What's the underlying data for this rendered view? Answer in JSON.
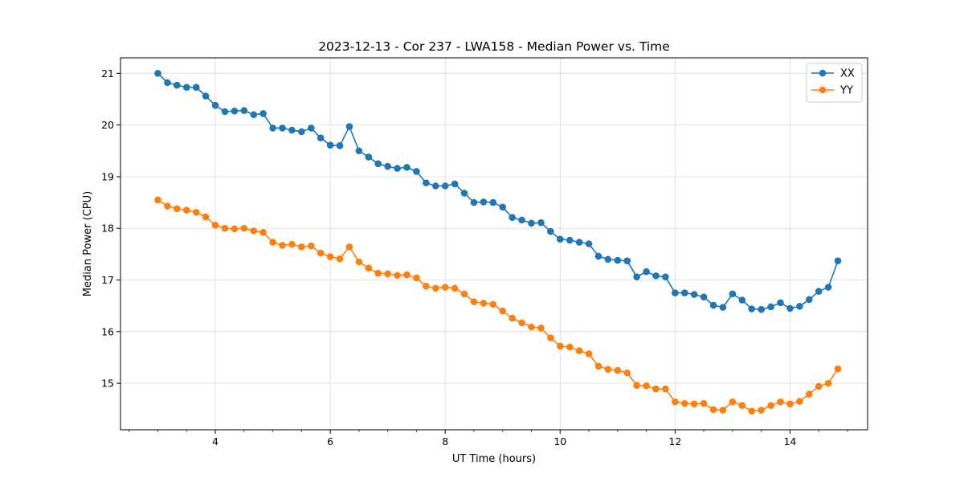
{
  "chart_data": {
    "type": "line",
    "title": "2023-12-13 - Cor 237 - LWA158 - Median Power vs. Time",
    "xlabel": "UT Time (hours)",
    "ylabel": "Median Power (CPU)",
    "xlim": [
      2.35,
      15.35
    ],
    "ylim": [
      14.1,
      21.3
    ],
    "xticks": [
      4,
      6,
      8,
      10,
      12,
      14
    ],
    "xtick_labels": [
      "4",
      "6",
      "8",
      "10",
      "12",
      "14"
    ],
    "yticks": [
      15,
      16,
      17,
      18,
      19,
      20,
      21
    ],
    "ytick_labels": [
      "15",
      "16",
      "17",
      "18",
      "19",
      "20",
      "21"
    ],
    "grid": true,
    "legend_position": "top-right",
    "x": [
      3.0,
      3.167,
      3.333,
      3.5,
      3.667,
      3.833,
      4.0,
      4.167,
      4.333,
      4.5,
      4.667,
      4.833,
      5.0,
      5.167,
      5.333,
      5.5,
      5.667,
      5.833,
      6.0,
      6.167,
      6.333,
      6.5,
      6.667,
      6.833,
      7.0,
      7.167,
      7.333,
      7.5,
      7.667,
      7.833,
      8.0,
      8.167,
      8.333,
      8.5,
      8.667,
      8.833,
      9.0,
      9.167,
      9.333,
      9.5,
      9.667,
      9.833,
      10.0,
      10.167,
      10.333,
      10.5,
      10.667,
      10.833,
      11.0,
      11.167,
      11.333,
      11.5,
      11.667,
      11.833,
      12.0,
      12.167,
      12.333,
      12.5,
      12.667,
      12.833,
      13.0,
      13.167,
      13.333,
      13.5,
      13.667,
      13.833,
      14.0,
      14.167,
      14.333,
      14.5,
      14.667,
      14.833
    ],
    "series": [
      {
        "name": "XX",
        "color": "#1f77b4",
        "values": [
          21.0,
          20.82,
          20.77,
          20.73,
          20.73,
          20.56,
          20.38,
          20.26,
          20.27,
          20.28,
          20.2,
          20.22,
          19.94,
          19.94,
          19.9,
          19.87,
          19.94,
          19.75,
          19.61,
          19.6,
          19.97,
          19.5,
          19.38,
          19.25,
          19.2,
          19.16,
          19.18,
          19.1,
          18.88,
          18.82,
          18.82,
          18.86,
          18.68,
          18.5,
          18.51,
          18.5,
          18.41,
          18.21,
          18.16,
          18.1,
          18.11,
          17.94,
          17.79,
          17.77,
          17.73,
          17.7,
          17.46,
          17.4,
          17.38,
          17.37,
          17.06,
          17.16,
          17.08,
          17.06,
          16.75,
          16.75,
          16.72,
          16.67,
          16.51,
          16.47,
          16.73,
          16.61,
          16.44,
          16.43,
          16.48,
          16.56,
          16.45,
          16.49,
          16.62,
          16.78,
          16.86,
          17.37
        ]
      },
      {
        "name": "YY",
        "color": "#ff7f0e",
        "values": [
          18.55,
          18.43,
          18.38,
          18.35,
          18.31,
          18.22,
          18.06,
          18.0,
          17.99,
          18.0,
          17.95,
          17.92,
          17.73,
          17.67,
          17.69,
          17.64,
          17.66,
          17.52,
          17.45,
          17.41,
          17.64,
          17.35,
          17.23,
          17.13,
          17.12,
          17.09,
          17.1,
          17.04,
          16.88,
          16.84,
          16.86,
          16.84,
          16.73,
          16.58,
          16.55,
          16.53,
          16.4,
          16.26,
          16.17,
          16.09,
          16.07,
          15.88,
          15.72,
          15.7,
          15.63,
          15.57,
          15.33,
          15.27,
          15.25,
          15.2,
          14.96,
          14.95,
          14.89,
          14.89,
          14.64,
          14.61,
          14.6,
          14.61,
          14.49,
          14.48,
          14.64,
          14.57,
          14.46,
          14.48,
          14.57,
          14.64,
          14.6,
          14.65,
          14.79,
          14.94,
          15.0,
          15.28
        ]
      }
    ]
  }
}
